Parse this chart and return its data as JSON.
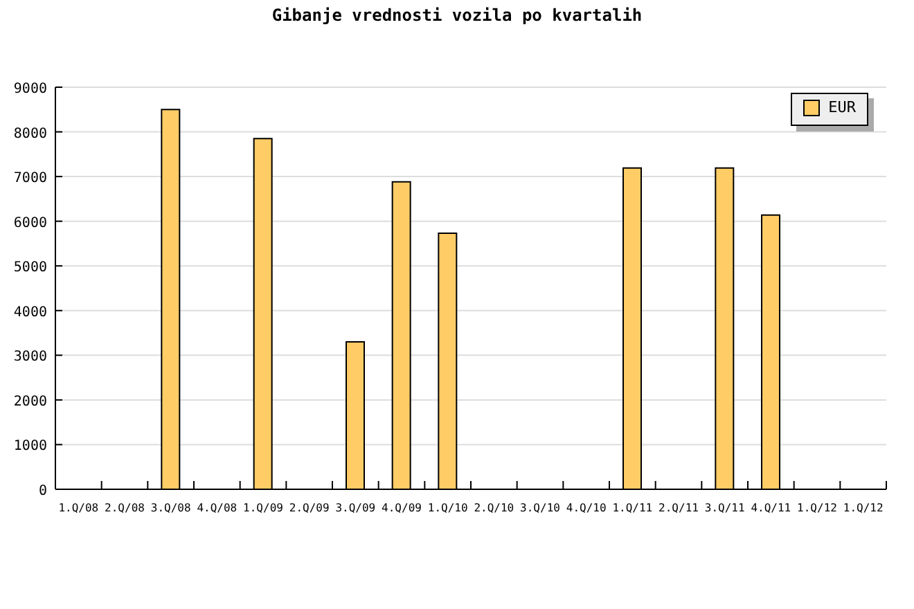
{
  "chart_data": {
    "type": "bar",
    "title": "Gibanje vrednosti vozila po kvartalih",
    "categories": [
      "1.Q/08",
      "2.Q/08",
      "3.Q/08",
      "4.Q/08",
      "1.Q/09",
      "2.Q/09",
      "3.Q/09",
      "4.Q/09",
      "1.Q/10",
      "2.Q/10",
      "3.Q/10",
      "4.Q/10",
      "1.Q/11",
      "2.Q/11",
      "3.Q/11",
      "4.Q/11",
      "1.Q/12",
      "1.Q/12"
    ],
    "series": [
      {
        "name": "EUR",
        "color": "#ffcc66",
        "values": [
          null,
          null,
          8500,
          null,
          7850,
          null,
          3300,
          6880,
          5730,
          null,
          null,
          null,
          7190,
          null,
          7190,
          6140,
          null,
          null
        ]
      }
    ],
    "ylim": [
      0,
      9000
    ],
    "yticks": [
      0,
      1000,
      2000,
      3000,
      4000,
      5000,
      6000,
      7000,
      8000,
      9000
    ],
    "grid": "y",
    "legend": "top right"
  }
}
